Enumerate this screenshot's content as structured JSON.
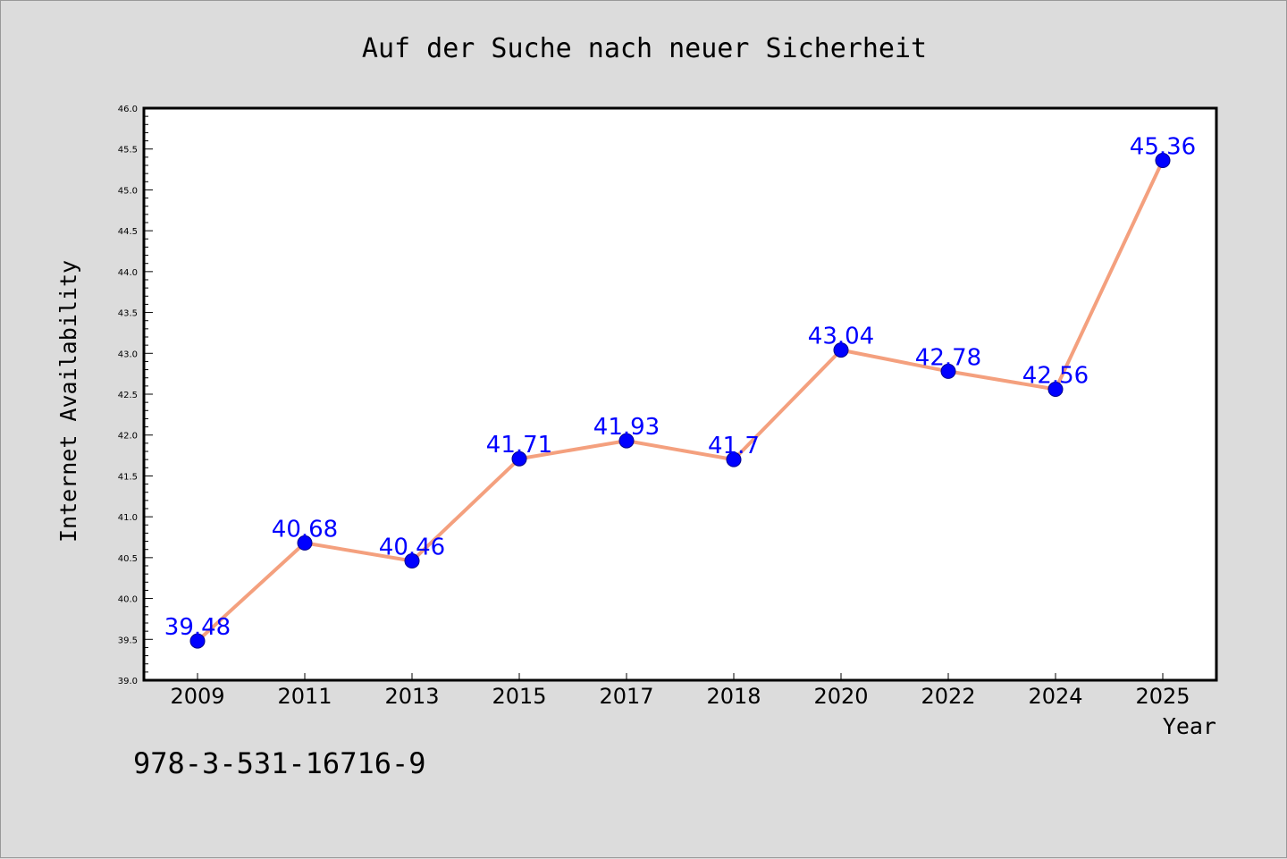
{
  "chart_data": {
    "type": "line",
    "title": "Auf der Suche nach neuer Sicherheit",
    "xlabel": "Year",
    "ylabel": "Internet Availability",
    "categories": [
      "2009",
      "2011",
      "2013",
      "2015",
      "2017",
      "2018",
      "2020",
      "2022",
      "2024",
      "2025"
    ],
    "series": [
      {
        "values": [
          39.48,
          40.68,
          40.46,
          41.71,
          41.93,
          41.7,
          43.04,
          42.78,
          42.56,
          45.36
        ],
        "labels": [
          "39.48",
          "40.68",
          "40.46",
          "41.71",
          "41.93",
          "41.7",
          "43.04",
          "42.78",
          "42.56",
          "45.36"
        ]
      }
    ],
    "ylim": [
      39.0,
      46.0
    ],
    "yticks": [
      "39.0",
      "39.5",
      "40.0",
      "40.5",
      "41.0",
      "41.5",
      "42.0",
      "42.5",
      "43.0",
      "43.5",
      "44.0",
      "44.5",
      "45.0",
      "45.5",
      "46.0"
    ],
    "grid": false,
    "colors": {
      "line": "#f4a07e",
      "marker": "#0000ff",
      "marker_edge": "#00008b",
      "data_label": "#0000ff",
      "plot_bg": "#ffffff",
      "figure_bg": "#dcdcdc"
    }
  },
  "footer": {
    "isbn": "978-3-531-16716-9"
  }
}
